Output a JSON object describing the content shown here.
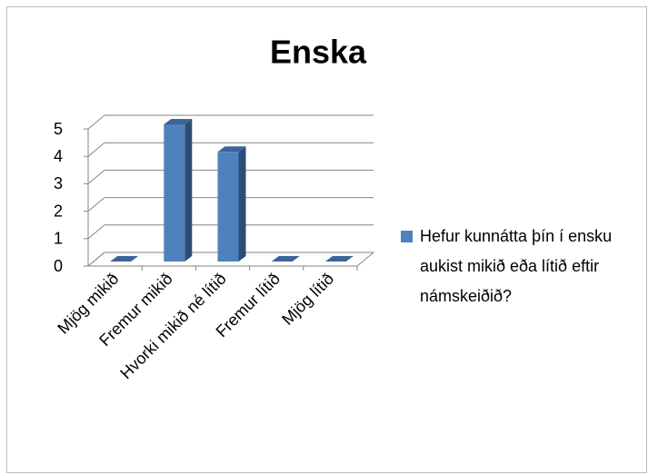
{
  "chart_data": {
    "type": "bar3d",
    "title": "Enska",
    "categories": [
      "Mjög mikið",
      "Fremur mikið",
      "Hvorki mikið né lítið",
      "Fremur lítið",
      "Mjög lítið"
    ],
    "series": [
      {
        "name": "Hefur kunnátta þín í ensku aukist mikið eða lítið eftir námskeiðið?",
        "color": "#4f81bd",
        "values": [
          0,
          5,
          4,
          0,
          0
        ]
      }
    ],
    "ylim": [
      0,
      5
    ],
    "yticks": [
      0,
      1,
      2,
      3,
      4,
      5
    ],
    "grid": true,
    "legend": "right"
  }
}
